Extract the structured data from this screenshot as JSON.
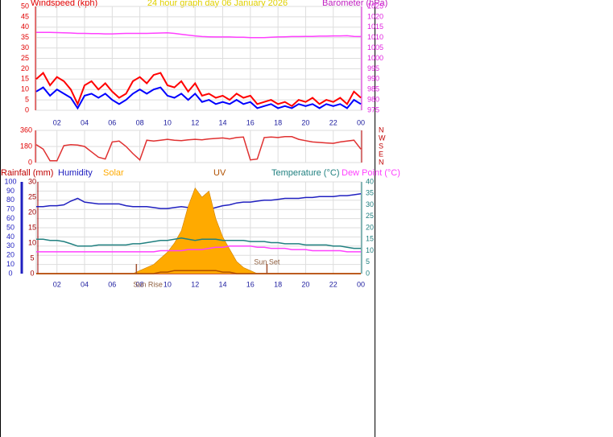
{
  "chart_data": [
    {
      "type": "line",
      "title": "24 hour graph day 06 January 2026",
      "ylabel": "Windspeed (kph)",
      "y2label": "Barometer (hPa)",
      "xlim": [
        0.5,
        24
      ],
      "xticks": [
        {
          "value": 2,
          "label": "02"
        },
        {
          "value": 4,
          "label": "04"
        },
        {
          "value": 6,
          "label": "06"
        },
        {
          "value": 8,
          "label": "08"
        },
        10,
        12,
        14,
        16,
        18,
        20,
        22,
        {
          "value": 24,
          "label": "00"
        }
      ],
      "ylim": [
        0,
        50
      ],
      "yticks": [
        0,
        5,
        10,
        15,
        20,
        25,
        30,
        35,
        40,
        45,
        50
      ],
      "y2lim": [
        975,
        1025
      ],
      "y2ticks": [
        975,
        980,
        985,
        990,
        995,
        1000,
        1005,
        1010,
        1015,
        1020,
        1025
      ],
      "grid": true,
      "x": [
        0.5,
        1,
        1.5,
        2,
        2.5,
        3,
        3.5,
        4,
        4.5,
        5,
        5.5,
        6,
        6.5,
        7,
        7.5,
        8,
        8.5,
        9,
        9.5,
        10,
        10.5,
        11,
        11.5,
        12,
        12.5,
        13,
        13.5,
        14,
        14.5,
        15,
        15.5,
        16,
        16.5,
        17,
        17.5,
        18,
        18.5,
        19,
        19.5,
        20,
        20.5,
        21,
        21.5,
        22,
        22.5,
        23,
        23.5,
        24
      ],
      "series": [
        {
          "color": "#ff0000",
          "values": [
            15,
            18,
            12,
            16,
            14,
            10,
            3,
            12,
            14,
            10,
            13,
            9,
            6,
            8,
            14,
            16,
            13,
            17,
            18,
            12,
            11,
            14,
            9,
            13,
            7,
            8,
            6,
            7,
            5,
            8,
            6,
            7,
            3,
            4,
            5,
            3,
            4,
            2,
            5,
            4,
            6,
            3,
            5,
            4,
            6,
            3,
            9,
            6
          ]
        },
        {
          "color": "#0000ff",
          "values": [
            9,
            11,
            7,
            10,
            8,
            6,
            1,
            7,
            8,
            6,
            8,
            5,
            3,
            5,
            8,
            10,
            8,
            10,
            11,
            7,
            6,
            8,
            5,
            8,
            4,
            5,
            3,
            4,
            3,
            5,
            3,
            4,
            1,
            2,
            3,
            1,
            2,
            1,
            3,
            2,
            3,
            1,
            3,
            2,
            3,
            1,
            5,
            3
          ]
        },
        {
          "color": "#ff40ff",
          "axis": "y2",
          "values": [
            1012.5,
            1012.5,
            1012.5,
            1012.4,
            1012.3,
            1012.2,
            1012,
            1012,
            1011.9,
            1011.9,
            1011.8,
            1011.8,
            1011.9,
            1012,
            1012,
            1012,
            1012,
            1012.1,
            1012.2,
            1012.3,
            1012,
            1011.6,
            1011.2,
            1010.8,
            1010.5,
            1010.4,
            1010.3,
            1010.3,
            1010.3,
            1010.2,
            1010.2,
            1010,
            1010,
            1010,
            1010.2,
            1010.3,
            1010.4,
            1010.5,
            1010.5,
            1010.6,
            1010.6,
            1010.7,
            1010.7,
            1010.8,
            1010.8,
            1010.9,
            1010.6,
            1010.5
          ]
        }
      ]
    },
    {
      "type": "line",
      "xlim": [
        0.5,
        24
      ],
      "xticks": [
        {
          "value": 2,
          "label": "02"
        },
        {
          "value": 4,
          "label": "04"
        },
        {
          "value": 6,
          "label": "06"
        },
        {
          "value": 8,
          "label": "08"
        },
        10,
        12,
        14,
        16,
        18,
        20,
        22,
        {
          "value": 24,
          "label": "00"
        }
      ],
      "ylim": [
        0,
        360
      ],
      "yticks": [
        0,
        180,
        360
      ],
      "y2lim": [
        0,
        360
      ],
      "y2ticks": [
        {
          "value": 360,
          "label": "N"
        },
        {
          "value": 270,
          "label": "W"
        },
        {
          "value": 180,
          "label": "S"
        },
        {
          "value": 90,
          "label": "E"
        },
        {
          "value": 0,
          "label": "N"
        }
      ],
      "grid": true,
      "x": [
        0.5,
        1,
        1.5,
        2,
        2.5,
        3,
        3.5,
        4,
        4.5,
        5,
        5.5,
        6,
        6.5,
        7,
        7.5,
        8,
        8.5,
        9,
        9.5,
        10,
        10.5,
        11,
        11.5,
        12,
        12.5,
        13,
        13.5,
        14,
        14.5,
        15,
        15.5,
        16,
        16.5,
        17,
        17.5,
        18,
        18.5,
        19,
        19.5,
        20,
        20.5,
        21,
        21.5,
        22,
        22.5,
        23,
        23.5,
        24
      ],
      "series": [
        {
          "color": "#e03030",
          "values": [
            200,
            150,
            20,
            20,
            190,
            200,
            195,
            180,
            120,
            60,
            40,
            230,
            240,
            180,
            100,
            30,
            250,
            240,
            250,
            260,
            250,
            245,
            255,
            260,
            255,
            265,
            270,
            275,
            265,
            280,
            285,
            30,
            40,
            280,
            285,
            280,
            290,
            290,
            260,
            245,
            230,
            225,
            220,
            215,
            230,
            240,
            250,
            150
          ]
        }
      ]
    },
    {
      "type": "line",
      "xlim": [
        0.5,
        24
      ],
      "xticks": [
        {
          "value": 2,
          "label": "02"
        },
        {
          "value": 4,
          "label": "04"
        },
        {
          "value": 6,
          "label": "06"
        },
        {
          "value": 8,
          "label": "08"
        },
        10,
        12,
        14,
        16,
        18,
        20,
        22,
        {
          "value": 24,
          "label": "00"
        }
      ],
      "ylim": [
        0,
        100
      ],
      "yticks": [
        0,
        10,
        20,
        30,
        40,
        50,
        60,
        70,
        80,
        90,
        100
      ],
      "y3lim": [
        0,
        30
      ],
      "y3ticks": [
        0,
        5,
        10,
        15,
        20,
        25,
        30
      ],
      "y2lim": [
        0,
        40
      ],
      "y2ticks": [
        0,
        5,
        10,
        15,
        20,
        25,
        30,
        35,
        40
      ],
      "grid": true,
      "annotations": [
        {
          "text": "Sun Rise",
          "x": 7.75
        },
        {
          "text": "Sun Set",
          "x": 17.2
        }
      ],
      "x": [
        0.5,
        1,
        1.5,
        2,
        2.5,
        3,
        3.5,
        4,
        4.5,
        5,
        5.5,
        6,
        6.5,
        7,
        7.5,
        8,
        8.5,
        9,
        9.5,
        10,
        10.5,
        11,
        11.5,
        12,
        12.5,
        13,
        13.5,
        14,
        14.5,
        15,
        15.5,
        16,
        16.5,
        17,
        17.5,
        18,
        18.5,
        19,
        19.5,
        20,
        20.5,
        21,
        21.5,
        22,
        22.5,
        23,
        23.5,
        24
      ],
      "series": [
        {
          "name": "Rainfall (mm)",
          "color": "#c00000",
          "axis": "y3",
          "values": [
            0,
            0,
            0,
            0,
            0,
            0,
            0,
            0,
            0,
            0,
            0,
            0,
            0,
            0,
            0,
            0,
            0,
            0,
            0,
            0,
            0,
            0,
            0,
            0,
            0,
            0,
            0,
            0,
            0,
            0,
            0,
            0,
            0,
            0,
            0,
            0,
            0,
            0,
            0,
            0,
            0,
            0,
            0,
            0,
            0,
            0,
            0,
            0
          ]
        },
        {
          "name": "Humidity",
          "color": "#2020c0",
          "values": [
            73,
            73,
            74,
            74,
            75,
            79,
            82,
            78,
            77,
            76,
            76,
            76,
            76,
            74,
            73,
            73,
            73,
            72,
            71,
            71,
            72,
            73,
            72,
            71,
            71,
            70,
            72,
            74,
            75,
            77,
            78,
            78,
            79,
            80,
            80,
            81,
            82,
            82,
            82,
            83,
            83,
            84,
            84,
            84,
            85,
            85,
            86,
            87
          ]
        },
        {
          "name": "Solar",
          "color": "#ffaa00",
          "axis": "y3",
          "style": "area",
          "values": [
            0,
            0,
            0,
            0,
            0,
            0,
            0,
            0,
            0,
            0,
            0,
            0,
            0,
            0,
            0,
            1,
            2,
            3,
            5,
            7,
            10,
            14,
            22,
            28,
            25,
            27,
            18,
            12,
            8,
            4,
            2,
            1,
            0,
            0,
            0,
            0,
            0,
            0,
            0,
            0,
            0,
            0,
            0,
            0,
            0,
            0,
            0,
            0
          ]
        },
        {
          "name": "UV",
          "color": "#b05000",
          "axis": "y3",
          "values": [
            0,
            0,
            0,
            0,
            0,
            0,
            0,
            0,
            0,
            0,
            0,
            0,
            0,
            0,
            0,
            0,
            0,
            0,
            0.5,
            0.5,
            1,
            1,
            1,
            1,
            1,
            1,
            1,
            0.5,
            0.5,
            0,
            0,
            0,
            0,
            0,
            0,
            0,
            0,
            0,
            0,
            0,
            0,
            0,
            0,
            0,
            0,
            0,
            0,
            0
          ]
        },
        {
          "name": "Temperature (°C)",
          "color": "#208080",
          "axis": "y2",
          "values": [
            15,
            15,
            14.5,
            14.5,
            14,
            13,
            12,
            12,
            12,
            12.5,
            12.5,
            12.5,
            12.5,
            12.5,
            13,
            13,
            13.5,
            14,
            14.5,
            14.5,
            15,
            15.5,
            15,
            14.5,
            15,
            15,
            15,
            14.5,
            14.5,
            14.5,
            14.5,
            14,
            14,
            14,
            13.5,
            13.5,
            13,
            13,
            13,
            12.5,
            12.5,
            12.5,
            12.5,
            12,
            12,
            11.5,
            11,
            11
          ]
        },
        {
          "name": "Dew Point (°C)",
          "color": "#ff40ff",
          "axis": "y2",
          "values": [
            9.5,
            9.5,
            9.5,
            9.5,
            9.5,
            9.5,
            9.5,
            9.5,
            9.5,
            9.5,
            9.5,
            9.5,
            9.5,
            9.5,
            9.5,
            9.5,
            9.5,
            9.5,
            10,
            10,
            10,
            10,
            10.5,
            10.5,
            10.5,
            11,
            11.5,
            11.5,
            12,
            12,
            12,
            12,
            11.5,
            11.5,
            11,
            11,
            11,
            10.5,
            10.5,
            10.5,
            10,
            10,
            10,
            10,
            10,
            9.5,
            9.5,
            9.5
          ]
        }
      ]
    }
  ]
}
